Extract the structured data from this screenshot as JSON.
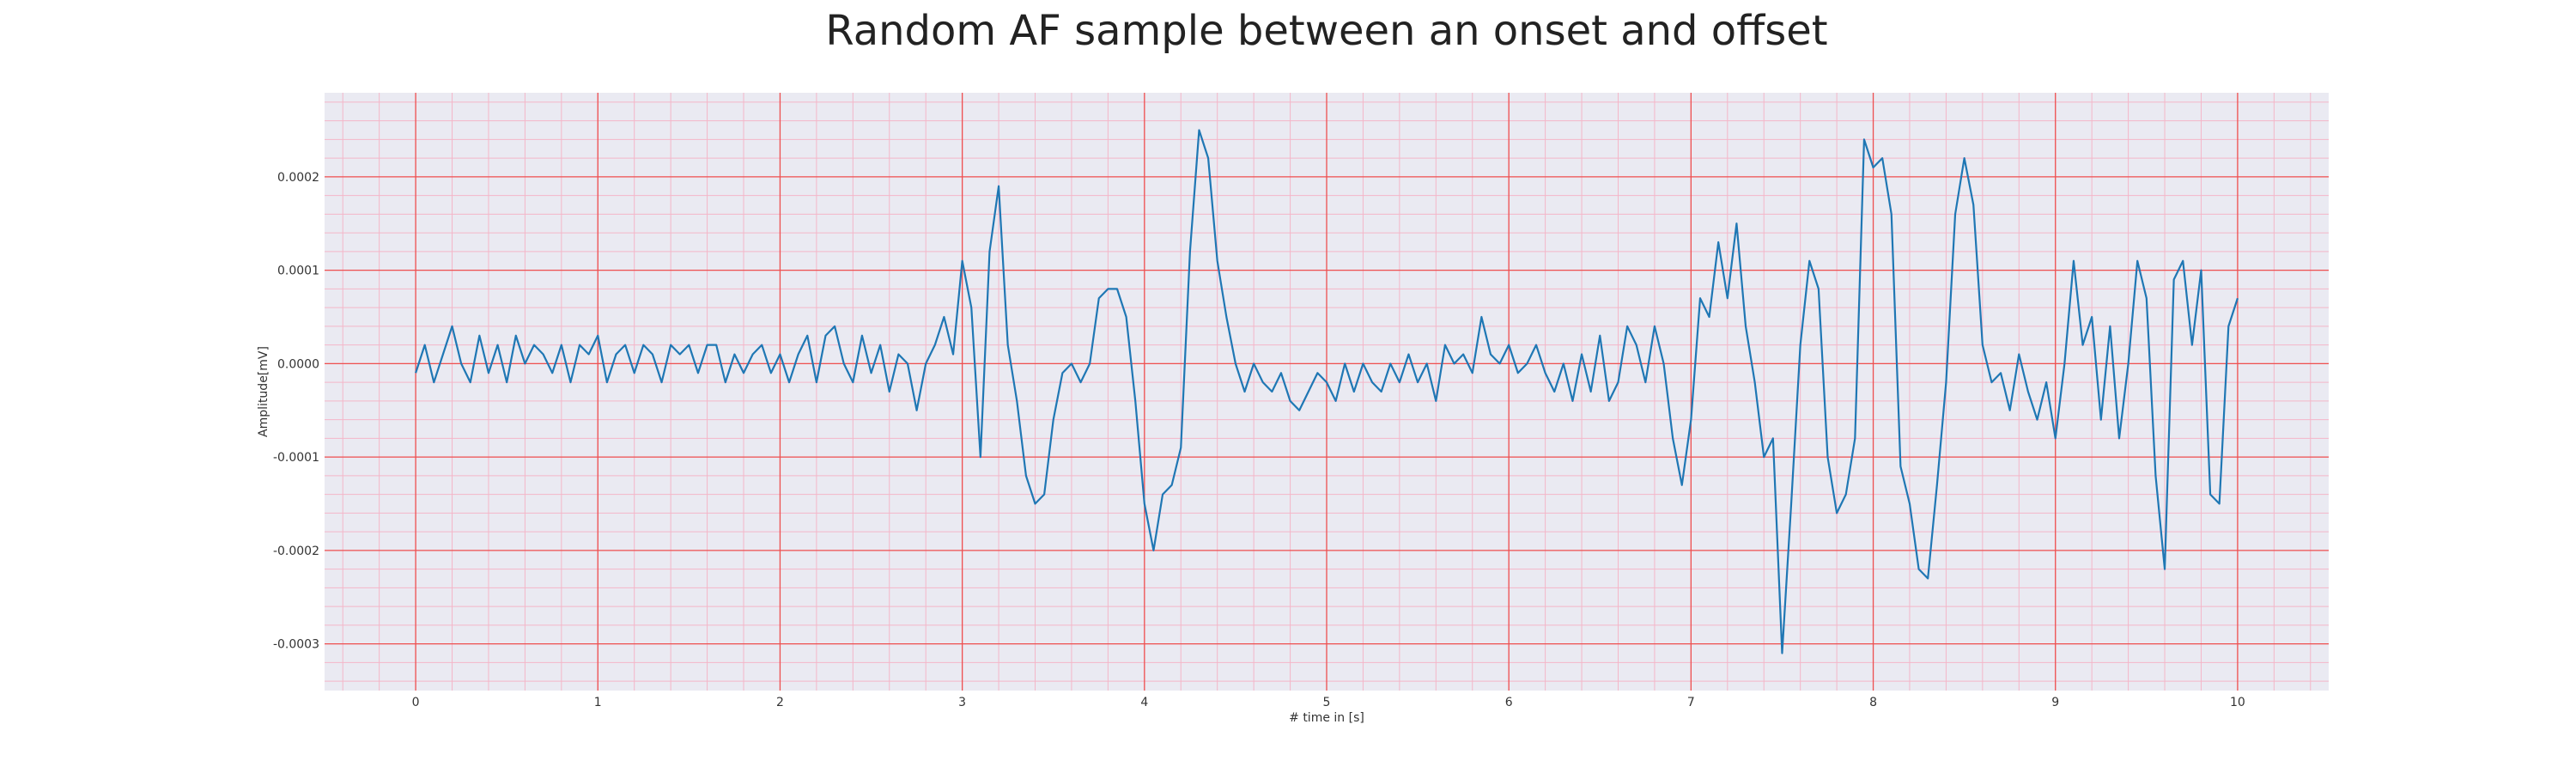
{
  "chart_data": {
    "type": "line",
    "title": "Random AF sample between an onset and offset",
    "xlabel": "# time in [s]",
    "ylabel": "Amplitude[mV]",
    "xlim": [
      -0.5,
      10.5
    ],
    "ylim": [
      -0.00035,
      0.00029
    ],
    "xticks": [
      0,
      1,
      2,
      3,
      4,
      5,
      6,
      7,
      8,
      9,
      10
    ],
    "xtick_labels": [
      "0",
      "1",
      "2",
      "3",
      "4",
      "5",
      "6",
      "7",
      "8",
      "9",
      "10"
    ],
    "yticks": [
      -0.0003,
      -0.0002,
      -0.0001,
      0.0,
      0.0001,
      0.0002
    ],
    "ytick_labels": [
      "-0.0003",
      "-0.0002",
      "-0.0001",
      "0.0000",
      "0.0001",
      "0.0002"
    ],
    "grid": true,
    "minor_grid": true,
    "colors": {
      "line": "#1f77b4",
      "plot_background": "#eaeaf2",
      "major_grid": "#ee5050",
      "minor_grid": "#f4b6c8"
    },
    "series": [
      {
        "x": [
          0.0,
          0.05,
          0.1,
          0.15,
          0.2,
          0.25,
          0.3,
          0.35,
          0.4,
          0.45,
          0.5,
          0.55,
          0.6,
          0.65,
          0.7,
          0.75,
          0.8,
          0.85,
          0.9,
          0.95,
          1.0,
          1.05,
          1.1,
          1.15,
          1.2,
          1.25,
          1.3,
          1.35,
          1.4,
          1.45,
          1.5,
          1.55,
          1.6,
          1.65,
          1.7,
          1.75,
          1.8,
          1.85,
          1.9,
          1.95,
          2.0,
          2.05,
          2.1,
          2.15,
          2.2,
          2.25,
          2.3,
          2.35,
          2.4,
          2.45,
          2.5,
          2.55,
          2.6,
          2.65,
          2.7,
          2.75,
          2.8,
          2.85,
          2.9,
          2.95,
          3.0,
          3.05,
          3.1,
          3.15,
          3.2,
          3.25,
          3.3,
          3.35,
          3.4,
          3.45,
          3.5,
          3.55,
          3.6,
          3.65,
          3.7,
          3.75,
          3.8,
          3.85,
          3.9,
          3.95,
          4.0,
          4.05,
          4.1,
          4.15,
          4.2,
          4.25,
          4.3,
          4.35,
          4.4,
          4.45,
          4.5,
          4.55,
          4.6,
          4.65,
          4.7,
          4.75,
          4.8,
          4.85,
          4.9,
          4.95,
          5.0,
          5.05,
          5.1,
          5.15,
          5.2,
          5.25,
          5.3,
          5.35,
          5.4,
          5.45,
          5.5,
          5.55,
          5.6,
          5.65,
          5.7,
          5.75,
          5.8,
          5.85,
          5.9,
          5.95,
          6.0,
          6.05,
          6.1,
          6.15,
          6.2,
          6.25,
          6.3,
          6.35,
          6.4,
          6.45,
          6.5,
          6.55,
          6.6,
          6.65,
          6.7,
          6.75,
          6.8,
          6.85,
          6.9,
          6.95,
          7.0,
          7.05,
          7.1,
          7.15,
          7.2,
          7.25,
          7.3,
          7.35,
          7.4,
          7.45,
          7.5,
          7.55,
          7.6,
          7.65,
          7.7,
          7.75,
          7.8,
          7.85,
          7.9,
          7.95,
          8.0,
          8.05,
          8.1,
          8.15,
          8.2,
          8.25,
          8.3,
          8.35,
          8.4,
          8.45,
          8.5,
          8.55,
          8.6,
          8.65,
          8.7,
          8.75,
          8.8,
          8.85,
          8.9,
          8.95,
          9.0,
          9.05,
          9.1,
          9.15,
          9.2,
          9.25,
          9.3,
          9.35,
          9.4,
          9.45,
          9.5,
          9.55,
          9.6,
          9.65,
          9.7,
          9.75,
          9.8,
          9.85,
          9.9,
          9.95,
          10.0
        ],
        "y": [
          -1e-05,
          2e-05,
          -2e-05,
          1e-05,
          4e-05,
          0.0,
          -2e-05,
          3e-05,
          -1e-05,
          2e-05,
          -2e-05,
          3e-05,
          0.0,
          2e-05,
          1e-05,
          -1e-05,
          2e-05,
          -2e-05,
          2e-05,
          1e-05,
          3e-05,
          -2e-05,
          1e-05,
          2e-05,
          -1e-05,
          2e-05,
          1e-05,
          -2e-05,
          2e-05,
          1e-05,
          2e-05,
          -1e-05,
          2e-05,
          2e-05,
          -2e-05,
          1e-05,
          -1e-05,
          1e-05,
          2e-05,
          -1e-05,
          1e-05,
          -2e-05,
          1e-05,
          3e-05,
          -2e-05,
          3e-05,
          4e-05,
          0.0,
          -2e-05,
          3e-05,
          -1e-05,
          2e-05,
          -3e-05,
          1e-05,
          0.0,
          -5e-05,
          0.0,
          2e-05,
          5e-05,
          1e-05,
          0.00011,
          6e-05,
          -0.0001,
          0.00012,
          0.00019,
          2e-05,
          -4e-05,
          -0.00012,
          -0.00015,
          -0.00014,
          -6e-05,
          -1e-05,
          0.0,
          -2e-05,
          0.0,
          7e-05,
          8e-05,
          8e-05,
          5e-05,
          -4e-05,
          -0.00015,
          -0.0002,
          -0.00014,
          -0.00013,
          -9e-05,
          0.00012,
          0.00025,
          0.00022,
          0.00011,
          5e-05,
          0.0,
          -3e-05,
          0.0,
          -2e-05,
          -3e-05,
          -1e-05,
          -4e-05,
          -5e-05,
          -3e-05,
          -1e-05,
          -2e-05,
          -4e-05,
          0.0,
          -3e-05,
          0.0,
          -2e-05,
          -3e-05,
          0.0,
          -2e-05,
          1e-05,
          -2e-05,
          0.0,
          -4e-05,
          2e-05,
          0.0,
          1e-05,
          -1e-05,
          5e-05,
          1e-05,
          0.0,
          2e-05,
          -1e-05,
          0.0,
          2e-05,
          -1e-05,
          -3e-05,
          0.0,
          -4e-05,
          1e-05,
          -3e-05,
          3e-05,
          -4e-05,
          -2e-05,
          4e-05,
          2e-05,
          -2e-05,
          4e-05,
          0.0,
          -8e-05,
          -0.00013,
          -6e-05,
          7e-05,
          5e-05,
          0.00013,
          7e-05,
          0.00015,
          4e-05,
          -2e-05,
          -0.0001,
          -8e-05,
          -0.00031,
          -0.00015,
          2e-05,
          0.00011,
          8e-05,
          -0.0001,
          -0.00016,
          -0.00014,
          -8e-05,
          0.00024,
          0.00021,
          0.00022,
          0.00016,
          -0.00011,
          -0.00015,
          -0.00022,
          -0.00023,
          -0.00013,
          -2e-05,
          0.00016,
          0.00022,
          0.00017,
          2e-05,
          -2e-05,
          -1e-05,
          -5e-05,
          1e-05,
          -3e-05,
          -6e-05,
          -2e-05,
          -8e-05,
          0.0,
          0.00011,
          2e-05,
          5e-05,
          -6e-05,
          4e-05,
          -8e-05,
          0.0,
          0.00011,
          7e-05,
          -0.00012,
          -0.00022,
          9e-05,
          0.00011,
          2e-05,
          0.0001,
          -0.00014,
          -0.00015,
          4e-05,
          7e-05
        ]
      }
    ]
  }
}
